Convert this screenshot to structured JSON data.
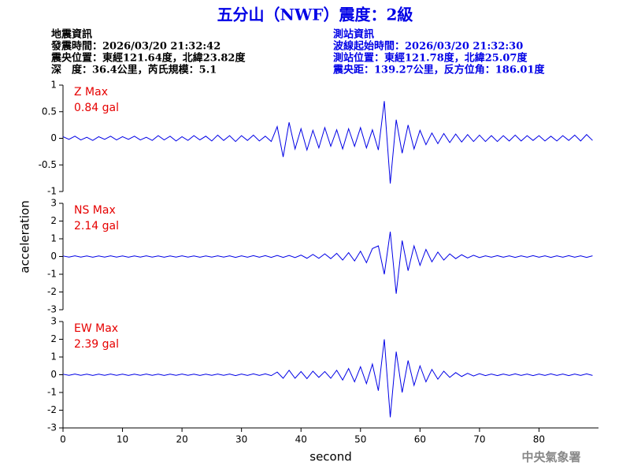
{
  "header": {
    "title": "五分山（NWF）震度：2級",
    "quake_info": [
      "地震資訊",
      "發震時間：2026/03/20 21:32:42",
      "震央位置：東經121.64度，北緯23.82度",
      "深　度：36.4公里，芮氏規模：5.1"
    ],
    "station_info": [
      "測站資訊",
      "波線起始時間：2026/03/20 21:32:30",
      "測站位置：東經121.78度，北緯25.07度",
      "震央距：139.27公里，反方位角：186.01度"
    ],
    "footer": "中央氣象署"
  },
  "chart_data": [
    {
      "type": "line",
      "annotation": [
        "Z Max",
        "0.84 gal"
      ],
      "color": "#0000e6",
      "xlim": [
        0,
        90
      ],
      "ylim": [
        -1,
        1
      ],
      "yticks": [
        -1,
        -0.5,
        0,
        0.5,
        1
      ],
      "x": [
        0,
        1,
        2,
        3,
        4,
        5,
        6,
        7,
        8,
        9,
        10,
        11,
        12,
        13,
        14,
        15,
        16,
        17,
        18,
        19,
        20,
        21,
        22,
        23,
        24,
        25,
        26,
        27,
        28,
        29,
        30,
        31,
        32,
        33,
        34,
        35,
        36,
        37,
        38,
        39,
        40,
        41,
        42,
        43,
        44,
        45,
        46,
        47,
        48,
        49,
        50,
        51,
        52,
        53,
        54,
        55,
        56,
        57,
        58,
        59,
        60,
        61,
        62,
        63,
        64,
        65,
        66,
        67,
        68,
        69,
        70,
        71,
        72,
        73,
        74,
        75,
        76,
        77,
        78,
        79,
        80,
        81,
        82,
        83,
        84,
        85,
        86,
        87,
        88,
        89
      ],
      "values": [
        0.03,
        -0.02,
        0.04,
        -0.03,
        0.02,
        -0.04,
        0.03,
        -0.02,
        0.04,
        -0.03,
        0.03,
        -0.02,
        0.04,
        -0.03,
        0.02,
        -0.04,
        0.05,
        -0.03,
        0.04,
        -0.05,
        0.03,
        -0.04,
        0.05,
        -0.03,
        0.04,
        -0.05,
        0.06,
        -0.04,
        0.05,
        -0.06,
        0.05,
        -0.04,
        0.06,
        -0.05,
        0.04,
        -0.06,
        0.22,
        -0.35,
        0.3,
        -0.2,
        0.18,
        -0.22,
        0.15,
        -0.18,
        0.2,
        -0.15,
        0.16,
        -0.2,
        0.18,
        -0.15,
        0.2,
        -0.18,
        0.16,
        -0.22,
        0.7,
        -0.85,
        0.35,
        -0.28,
        0.25,
        -0.2,
        0.15,
        -0.12,
        0.1,
        -0.1,
        0.09,
        -0.08,
        0.08,
        -0.07,
        0.07,
        -0.06,
        0.06,
        -0.06,
        0.05,
        -0.06,
        0.05,
        -0.05,
        0.06,
        -0.05,
        0.05,
        -0.04,
        0.05,
        -0.05,
        0.04,
        -0.05,
        0.05,
        -0.04,
        0.06,
        -0.05,
        0.07,
        -0.04
      ]
    },
    {
      "type": "line",
      "annotation": [
        "NS Max",
        "2.14 gal"
      ],
      "ylabel": "acceleration",
      "color": "#0000e6",
      "xlim": [
        0,
        90
      ],
      "ylim": [
        -3,
        3
      ],
      "yticks": [
        -3,
        -2,
        -1,
        0,
        1,
        2,
        3
      ],
      "x": [
        0,
        1,
        2,
        3,
        4,
        5,
        6,
        7,
        8,
        9,
        10,
        11,
        12,
        13,
        14,
        15,
        16,
        17,
        18,
        19,
        20,
        21,
        22,
        23,
        24,
        25,
        26,
        27,
        28,
        29,
        30,
        31,
        32,
        33,
        34,
        35,
        36,
        37,
        38,
        39,
        40,
        41,
        42,
        43,
        44,
        45,
        46,
        47,
        48,
        49,
        50,
        51,
        52,
        53,
        54,
        55,
        56,
        57,
        58,
        59,
        60,
        61,
        62,
        63,
        64,
        65,
        66,
        67,
        68,
        69,
        70,
        71,
        72,
        73,
        74,
        75,
        76,
        77,
        78,
        79,
        80,
        81,
        82,
        83,
        84,
        85,
        86,
        87,
        88,
        89
      ],
      "values": [
        0.03,
        -0.03,
        0.04,
        -0.03,
        0.03,
        -0.04,
        0.03,
        -0.03,
        0.04,
        -0.03,
        0.03,
        -0.04,
        0.03,
        -0.03,
        0.04,
        -0.03,
        0.03,
        -0.04,
        0.03,
        -0.03,
        0.04,
        -0.03,
        0.03,
        -0.04,
        0.03,
        -0.03,
        0.04,
        -0.03,
        0.04,
        -0.05,
        0.04,
        -0.04,
        0.05,
        -0.04,
        0.05,
        -0.05,
        0.06,
        -0.05,
        0.06,
        -0.06,
        0.08,
        -0.1,
        0.12,
        -0.1,
        0.15,
        -0.12,
        0.18,
        -0.2,
        0.22,
        -0.25,
        0.3,
        -0.35,
        0.45,
        0.6,
        -1.0,
        1.4,
        -2.1,
        0.9,
        -0.8,
        0.6,
        -0.5,
        0.4,
        -0.3,
        0.25,
        -0.2,
        0.15,
        -0.12,
        0.1,
        -0.08,
        0.07,
        -0.06,
        0.04,
        -0.04,
        0.05,
        -0.04,
        0.04,
        -0.05,
        0.04,
        -0.04,
        0.05,
        -0.04,
        0.04,
        -0.05,
        0.04,
        -0.04,
        0.05,
        -0.04,
        0.04,
        -0.05,
        0.04
      ]
    },
    {
      "type": "line",
      "annotation": [
        "EW Max",
        "2.39 gal"
      ],
      "xlabel": "second",
      "color": "#0000e6",
      "xlim": [
        0,
        90
      ],
      "ylim": [
        -3,
        3
      ],
      "yticks": [
        -3,
        -2,
        -1,
        0,
        1,
        2,
        3
      ],
      "xticks": [
        0,
        10,
        20,
        30,
        40,
        50,
        60,
        70,
        80
      ],
      "x": [
        0,
        1,
        2,
        3,
        4,
        5,
        6,
        7,
        8,
        9,
        10,
        11,
        12,
        13,
        14,
        15,
        16,
        17,
        18,
        19,
        20,
        21,
        22,
        23,
        24,
        25,
        26,
        27,
        28,
        29,
        30,
        31,
        32,
        33,
        34,
        35,
        36,
        37,
        38,
        39,
        40,
        41,
        42,
        43,
        44,
        45,
        46,
        47,
        48,
        49,
        50,
        51,
        52,
        53,
        54,
        55,
        56,
        57,
        58,
        59,
        60,
        61,
        62,
        63,
        64,
        65,
        66,
        67,
        68,
        69,
        70,
        71,
        72,
        73,
        74,
        75,
        76,
        77,
        78,
        79,
        80,
        81,
        82,
        83,
        84,
        85,
        86,
        87,
        88,
        89
      ],
      "values": [
        0.03,
        -0.03,
        0.04,
        -0.03,
        0.03,
        -0.04,
        0.03,
        -0.03,
        0.04,
        -0.03,
        0.03,
        -0.04,
        0.03,
        -0.03,
        0.04,
        -0.03,
        0.03,
        -0.04,
        0.03,
        -0.03,
        0.04,
        -0.03,
        0.03,
        -0.04,
        0.03,
        -0.03,
        0.04,
        -0.03,
        0.04,
        -0.05,
        0.04,
        -0.04,
        0.05,
        -0.04,
        0.05,
        -0.05,
        0.15,
        -0.2,
        0.25,
        -0.2,
        0.18,
        -0.22,
        0.2,
        -0.15,
        0.18,
        -0.2,
        0.25,
        -0.3,
        0.35,
        -0.4,
        0.45,
        -0.5,
        0.6,
        -0.9,
        2.0,
        -2.4,
        1.3,
        -1.0,
        0.8,
        -0.6,
        0.5,
        -0.4,
        0.3,
        -0.25,
        0.2,
        -0.15,
        0.12,
        -0.1,
        0.08,
        -0.07,
        0.06,
        -0.05,
        0.04,
        -0.05,
        0.04,
        -0.04,
        0.05,
        -0.04,
        0.04,
        -0.05,
        0.04,
        -0.04,
        0.05,
        -0.04,
        0.04,
        -0.05,
        0.04,
        -0.04,
        0.05,
        -0.04
      ]
    }
  ]
}
